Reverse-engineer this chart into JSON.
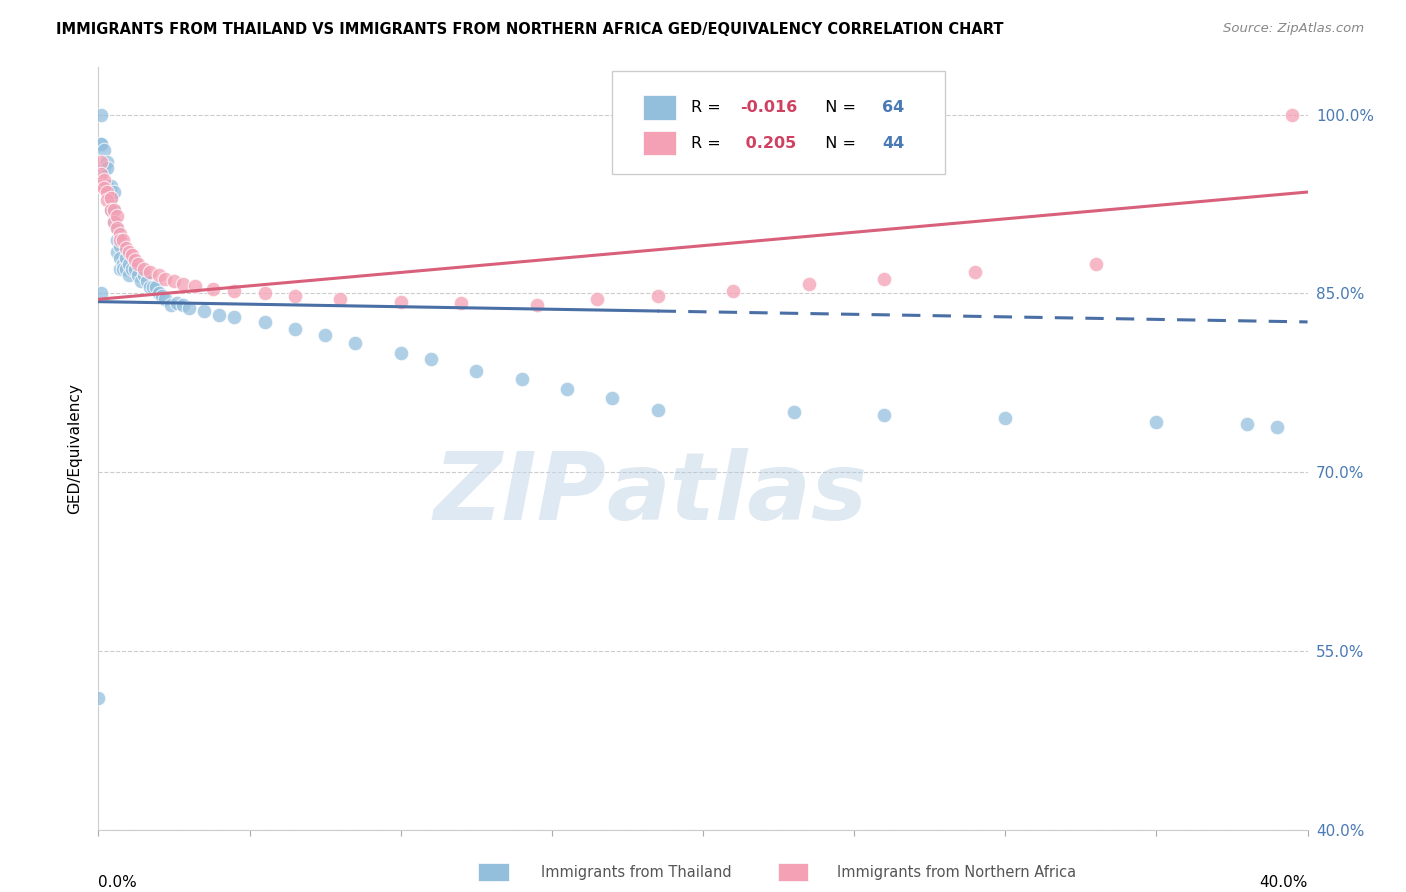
{
  "title": "IMMIGRANTS FROM THAILAND VS IMMIGRANTS FROM NORTHERN AFRICA GED/EQUIVALENCY CORRELATION CHART",
  "source": "Source: ZipAtlas.com",
  "ylabel": "GED/Equivalency",
  "ytick_labels": [
    "100.0%",
    "85.0%",
    "70.0%",
    "55.0%",
    "40.0%"
  ],
  "ytick_values": [
    1.0,
    0.85,
    0.7,
    0.55,
    0.4
  ],
  "xlim": [
    0.0,
    0.4
  ],
  "ylim": [
    0.4,
    1.04
  ],
  "watermark_zip": "ZIP",
  "watermark_atlas": "atlas",
  "thailand_color": "#93bfdd",
  "northern_africa_color": "#f4a0b5",
  "thailand_line_color": "#4a6fa5",
  "northern_africa_line_color": "#d9607a",
  "thailand_line_solid_end": 0.185,
  "thailand_line_y0": 0.843,
  "thailand_line_y1_solid": 0.836,
  "thailand_line_y1_dashed": 0.826,
  "northern_africa_line_y0": 0.845,
  "northern_africa_line_y1": 0.935,
  "thailand_x": [
    0.001,
    0.001,
    0.001,
    0.002,
    0.002,
    0.003,
    0.003,
    0.003,
    0.004,
    0.004,
    0.004,
    0.005,
    0.005,
    0.005,
    0.006,
    0.006,
    0.006,
    0.007,
    0.007,
    0.007,
    0.008,
    0.008,
    0.009,
    0.009,
    0.01,
    0.01,
    0.011,
    0.012,
    0.013,
    0.014,
    0.015,
    0.016,
    0.017,
    0.018,
    0.019,
    0.02,
    0.021,
    0.022,
    0.024,
    0.026,
    0.028,
    0.03,
    0.035,
    0.04,
    0.045,
    0.055,
    0.065,
    0.075,
    0.085,
    0.1,
    0.11,
    0.125,
    0.14,
    0.155,
    0.17,
    0.185,
    0.23,
    0.26,
    0.3,
    0.35,
    0.38,
    0.39,
    0.0,
    0.001
  ],
  "thailand_y": [
    0.975,
    1.0,
    0.975,
    0.97,
    0.955,
    0.96,
    0.955,
    0.94,
    0.94,
    0.93,
    0.92,
    0.935,
    0.92,
    0.91,
    0.905,
    0.895,
    0.885,
    0.89,
    0.88,
    0.87,
    0.875,
    0.87,
    0.88,
    0.87,
    0.875,
    0.865,
    0.87,
    0.87,
    0.865,
    0.86,
    0.865,
    0.86,
    0.855,
    0.855,
    0.855,
    0.85,
    0.848,
    0.845,
    0.84,
    0.842,
    0.84,
    0.838,
    0.835,
    0.832,
    0.83,
    0.826,
    0.82,
    0.815,
    0.808,
    0.8,
    0.795,
    0.785,
    0.778,
    0.77,
    0.762,
    0.752,
    0.75,
    0.748,
    0.745,
    0.742,
    0.74,
    0.738,
    0.51,
    0.85
  ],
  "northern_africa_x": [
    0.001,
    0.001,
    0.001,
    0.002,
    0.002,
    0.003,
    0.003,
    0.004,
    0.004,
    0.005,
    0.005,
    0.006,
    0.006,
    0.007,
    0.007,
    0.008,
    0.009,
    0.01,
    0.011,
    0.012,
    0.013,
    0.015,
    0.017,
    0.02,
    0.022,
    0.025,
    0.028,
    0.032,
    0.038,
    0.045,
    0.055,
    0.065,
    0.08,
    0.1,
    0.12,
    0.145,
    0.165,
    0.185,
    0.21,
    0.235,
    0.26,
    0.29,
    0.33,
    0.395
  ],
  "northern_africa_y": [
    0.96,
    0.95,
    0.94,
    0.945,
    0.938,
    0.935,
    0.928,
    0.93,
    0.92,
    0.92,
    0.91,
    0.915,
    0.905,
    0.9,
    0.895,
    0.895,
    0.888,
    0.885,
    0.882,
    0.878,
    0.875,
    0.87,
    0.868,
    0.865,
    0.862,
    0.86,
    0.858,
    0.856,
    0.854,
    0.852,
    0.85,
    0.848,
    0.845,
    0.843,
    0.842,
    0.84,
    0.845,
    0.848,
    0.852,
    0.858,
    0.862,
    0.868,
    0.875,
    1.0
  ]
}
